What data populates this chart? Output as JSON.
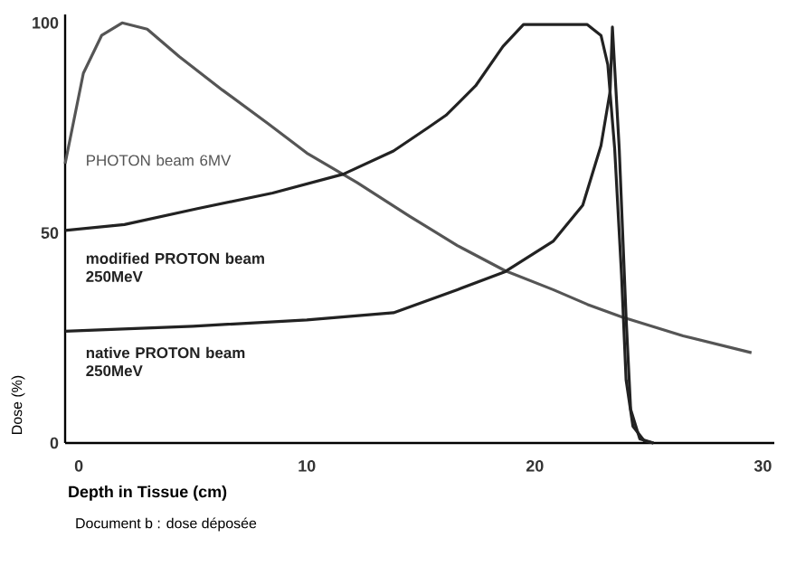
{
  "chart_data": {
    "type": "line",
    "xlabel": "Depth in Tissue (cm)",
    "ylabel": "Dose (%)",
    "xlim": [
      -0.6,
      30.5
    ],
    "ylim": [
      0,
      102
    ],
    "xticks": [
      0,
      10,
      20,
      30
    ],
    "yticks": [
      0,
      50,
      100
    ],
    "series": [
      {
        "name": "PHOTON beam 6MV",
        "color": "#555555",
        "x": [
          -0.6,
          0.2,
          1.0,
          1.9,
          3.0,
          4.4,
          6.3,
          8.3,
          10.0,
          12.2,
          14.5,
          16.6,
          18.7,
          20.8,
          22.3,
          23.8,
          26.5,
          29.5
        ],
        "values": [
          66.5,
          88,
          97,
          100,
          98.5,
          92,
          84,
          76,
          69,
          62,
          54,
          47,
          41,
          36.5,
          33,
          30,
          25.5,
          21.5
        ]
      },
      {
        "name": "modified PROTON beam 250MeV",
        "color": "#222222",
        "x": [
          -0.6,
          2.0,
          5.2,
          8.5,
          11.6,
          13.8,
          15.3,
          16.1,
          17.4,
          18.6,
          19.5,
          22.3,
          22.9,
          23.2,
          23.5,
          23.8,
          24.0,
          24.3,
          24.8,
          25.2
        ],
        "values": [
          50.6,
          52,
          55.8,
          59.5,
          64,
          69.5,
          75,
          78,
          85,
          94.4,
          99.6,
          99.6,
          97,
          90,
          70,
          40,
          15,
          4,
          0.5,
          0
        ]
      },
      {
        "name": "native PROTON beam 250MeV",
        "color": "#222222",
        "x": [
          -0.6,
          5.0,
          10.0,
          13.8,
          16.6,
          18.7,
          20.8,
          22.1,
          22.9,
          23.3,
          23.4,
          23.7,
          24.0,
          24.2,
          24.6,
          25.2
        ],
        "values": [
          26.6,
          27.8,
          29.3,
          31,
          36.5,
          40.8,
          48,
          56.6,
          70.8,
          83.7,
          99,
          70,
          30,
          8,
          1,
          0
        ]
      }
    ],
    "annotations": [
      "Document b : dose déposée"
    ]
  }
}
